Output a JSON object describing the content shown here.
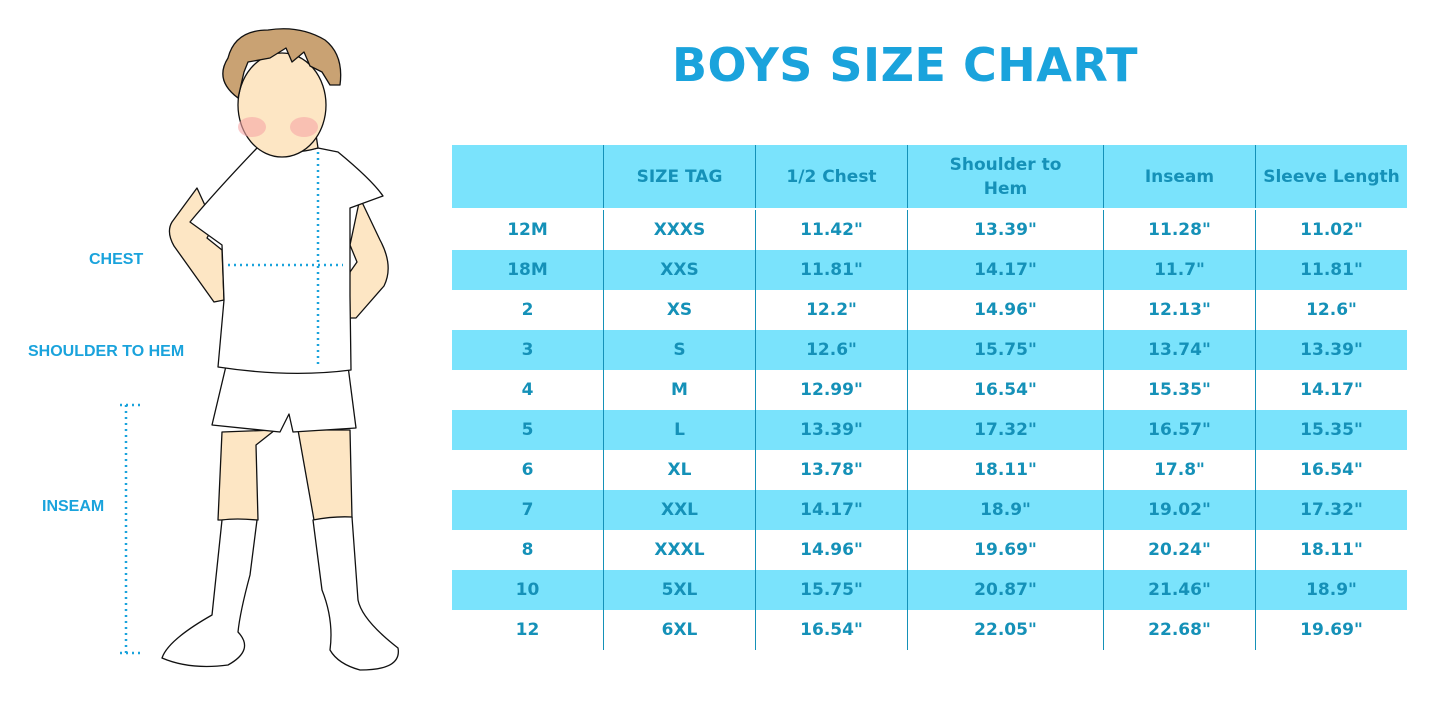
{
  "title": "BOYS SIZE CHART",
  "colors": {
    "accent": "#1aa3dc",
    "table_band": "#7ae3fc",
    "table_text": "#1591b8"
  },
  "figure_labels": {
    "chest": "CHEST",
    "shoulder_to_hem": "SHOULDER TO HEM",
    "inseam": "INSEAM"
  },
  "table": {
    "headers": [
      "",
      "SIZE TAG",
      "1/2 Chest",
      "Shoulder to Hem",
      "Inseam",
      "Sleeve Length"
    ],
    "rows": [
      [
        "12M",
        "XXXS",
        "11.42\"",
        "13.39\"",
        "11.28\"",
        "11.02\""
      ],
      [
        "18M",
        "XXS",
        "11.81\"",
        "14.17\"",
        "11.7\"",
        "11.81\""
      ],
      [
        "2",
        "XS",
        "12.2\"",
        "14.96\"",
        "12.13\"",
        "12.6\""
      ],
      [
        "3",
        "S",
        "12.6\"",
        "15.75\"",
        "13.74\"",
        "13.39\""
      ],
      [
        "4",
        "M",
        "12.99\"",
        "16.54\"",
        "15.35\"",
        "14.17\""
      ],
      [
        "5",
        "L",
        "13.39\"",
        "17.32\"",
        "16.57\"",
        "15.35\""
      ],
      [
        "6",
        "XL",
        "13.78\"",
        "18.11\"",
        "17.8\"",
        "16.54\""
      ],
      [
        "7",
        "XXL",
        "14.17\"",
        "18.9\"",
        "19.02\"",
        "17.32\""
      ],
      [
        "8",
        "XXXL",
        "14.96\"",
        "19.69\"",
        "20.24\"",
        "18.11\""
      ],
      [
        "10",
        "5XL",
        "15.75\"",
        "20.87\"",
        "21.46\"",
        "18.9\""
      ],
      [
        "12",
        "6XL",
        "16.54\"",
        "22.05\"",
        "22.68\"",
        "19.69\""
      ]
    ]
  }
}
